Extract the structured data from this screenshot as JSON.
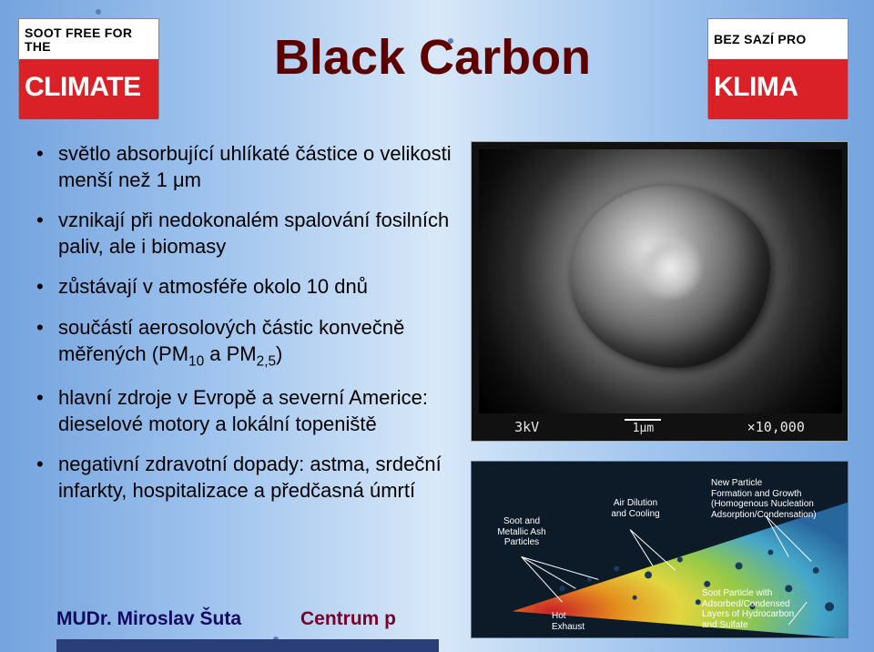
{
  "title": "Black Carbon",
  "logos": {
    "left": {
      "top": "SOOT FREE FOR THE",
      "bottom": "CLIMATE"
    },
    "right": {
      "top": "BEZ SAZÍ PRO",
      "bottom": "KLIMA"
    }
  },
  "bullets": [
    "světlo absorbující uhlíkaté částice o velikosti menší než 1 μm",
    "vznikají při nedokonalém spalování fosilních paliv, ale i biomasy",
    "zůstávají v atmosféře okolo 10 dnů",
    "součástí aerosolových částic konvečně měřených (PM|10| a PM|2,5|)",
    "hlavní zdroje v Evropě a severní Americe: dieselové motory a lokální topeniště",
    "negativní zdravotní dopady: astma, srdeční infarkty, hospitalizace a předčasná úmrtí"
  ],
  "sem": {
    "kv": "3kV",
    "scale": "1μm",
    "mag": "×10,000"
  },
  "diagram": {
    "exhaust": "Hot\nExhaust",
    "soot_ash": "Soot and\nMetallic Ash\nParticles",
    "air": "Air Dilution\nand Cooling",
    "new_particle": "New Particle\nFormation and Growth\n(Homogenous Nucleation\nAdsorption/Condensation)",
    "soot_particle": "Soot Particle with\nAdsorbed/Condensed\nLayers of Hydrocarbon\nand Sulfate",
    "cone_colors": [
      "#da2128",
      "#f79a1e",
      "#f5e642",
      "#a0d84a",
      "#4ab3d8"
    ]
  },
  "footer": {
    "author": "MUDr. Miroslav Šuta",
    "center": "Centrum p"
  },
  "colors": {
    "title": "#5c0000",
    "footer_author": "#120a60",
    "footer_center": "#7a002a",
    "logo_red": "#da2128",
    "diagram_bg": "#0d1a28"
  }
}
